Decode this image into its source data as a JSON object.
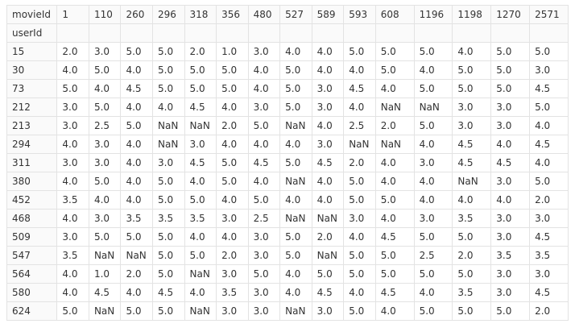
{
  "columns_name": "movieId",
  "index_name": "userId",
  "columns": [
    "1",
    "110",
    "260",
    "296",
    "318",
    "356",
    "480",
    "527",
    "589",
    "593",
    "608",
    "1196",
    "1198",
    "1270",
    "2571"
  ],
  "rows": [
    {
      "index": "15",
      "values": [
        "2.0",
        "3.0",
        "5.0",
        "5.0",
        "2.0",
        "1.0",
        "3.0",
        "4.0",
        "4.0",
        "5.0",
        "5.0",
        "5.0",
        "4.0",
        "5.0",
        "5.0"
      ]
    },
    {
      "index": "30",
      "values": [
        "4.0",
        "5.0",
        "4.0",
        "5.0",
        "5.0",
        "5.0",
        "4.0",
        "5.0",
        "4.0",
        "4.0",
        "5.0",
        "4.0",
        "5.0",
        "5.0",
        "3.0"
      ]
    },
    {
      "index": "73",
      "values": [
        "5.0",
        "4.0",
        "4.5",
        "5.0",
        "5.0",
        "5.0",
        "4.0",
        "5.0",
        "3.0",
        "4.5",
        "4.0",
        "5.0",
        "5.0",
        "5.0",
        "4.5"
      ]
    },
    {
      "index": "212",
      "values": [
        "3.0",
        "5.0",
        "4.0",
        "4.0",
        "4.5",
        "4.0",
        "3.0",
        "5.0",
        "3.0",
        "4.0",
        "NaN",
        "NaN",
        "3.0",
        "3.0",
        "5.0"
      ]
    },
    {
      "index": "213",
      "values": [
        "3.0",
        "2.5",
        "5.0",
        "NaN",
        "NaN",
        "2.0",
        "5.0",
        "NaN",
        "4.0",
        "2.5",
        "2.0",
        "5.0",
        "3.0",
        "3.0",
        "4.0"
      ]
    },
    {
      "index": "294",
      "values": [
        "4.0",
        "3.0",
        "4.0",
        "NaN",
        "3.0",
        "4.0",
        "4.0",
        "4.0",
        "3.0",
        "NaN",
        "NaN",
        "4.0",
        "4.5",
        "4.0",
        "4.5"
      ]
    },
    {
      "index": "311",
      "values": [
        "3.0",
        "3.0",
        "4.0",
        "3.0",
        "4.5",
        "5.0",
        "4.5",
        "5.0",
        "4.5",
        "2.0",
        "4.0",
        "3.0",
        "4.5",
        "4.5",
        "4.0"
      ]
    },
    {
      "index": "380",
      "values": [
        "4.0",
        "5.0",
        "4.0",
        "5.0",
        "4.0",
        "5.0",
        "4.0",
        "NaN",
        "4.0",
        "5.0",
        "4.0",
        "4.0",
        "NaN",
        "3.0",
        "5.0"
      ]
    },
    {
      "index": "452",
      "values": [
        "3.5",
        "4.0",
        "4.0",
        "5.0",
        "5.0",
        "4.0",
        "5.0",
        "4.0",
        "4.0",
        "5.0",
        "5.0",
        "4.0",
        "4.0",
        "4.0",
        "2.0"
      ]
    },
    {
      "index": "468",
      "values": [
        "4.0",
        "3.0",
        "3.5",
        "3.5",
        "3.5",
        "3.0",
        "2.5",
        "NaN",
        "NaN",
        "3.0",
        "4.0",
        "3.0",
        "3.5",
        "3.0",
        "3.0"
      ]
    },
    {
      "index": "509",
      "values": [
        "3.0",
        "5.0",
        "5.0",
        "5.0",
        "4.0",
        "4.0",
        "3.0",
        "5.0",
        "2.0",
        "4.0",
        "4.5",
        "5.0",
        "5.0",
        "3.0",
        "4.5"
      ]
    },
    {
      "index": "547",
      "values": [
        "3.5",
        "NaN",
        "NaN",
        "5.0",
        "5.0",
        "2.0",
        "3.0",
        "5.0",
        "NaN",
        "5.0",
        "5.0",
        "2.5",
        "2.0",
        "3.5",
        "3.5"
      ]
    },
    {
      "index": "564",
      "values": [
        "4.0",
        "1.0",
        "2.0",
        "5.0",
        "NaN",
        "3.0",
        "5.0",
        "4.0",
        "5.0",
        "5.0",
        "5.0",
        "5.0",
        "5.0",
        "3.0",
        "3.0"
      ]
    },
    {
      "index": "580",
      "values": [
        "4.0",
        "4.5",
        "4.0",
        "4.5",
        "4.0",
        "3.5",
        "3.0",
        "4.0",
        "4.5",
        "4.0",
        "4.5",
        "4.0",
        "3.5",
        "3.0",
        "4.5"
      ]
    },
    {
      "index": "624",
      "values": [
        "5.0",
        "NaN",
        "5.0",
        "5.0",
        "NaN",
        "3.0",
        "3.0",
        "NaN",
        "3.0",
        "5.0",
        "4.0",
        "5.0",
        "5.0",
        "5.0",
        "2.0"
      ]
    }
  ]
}
